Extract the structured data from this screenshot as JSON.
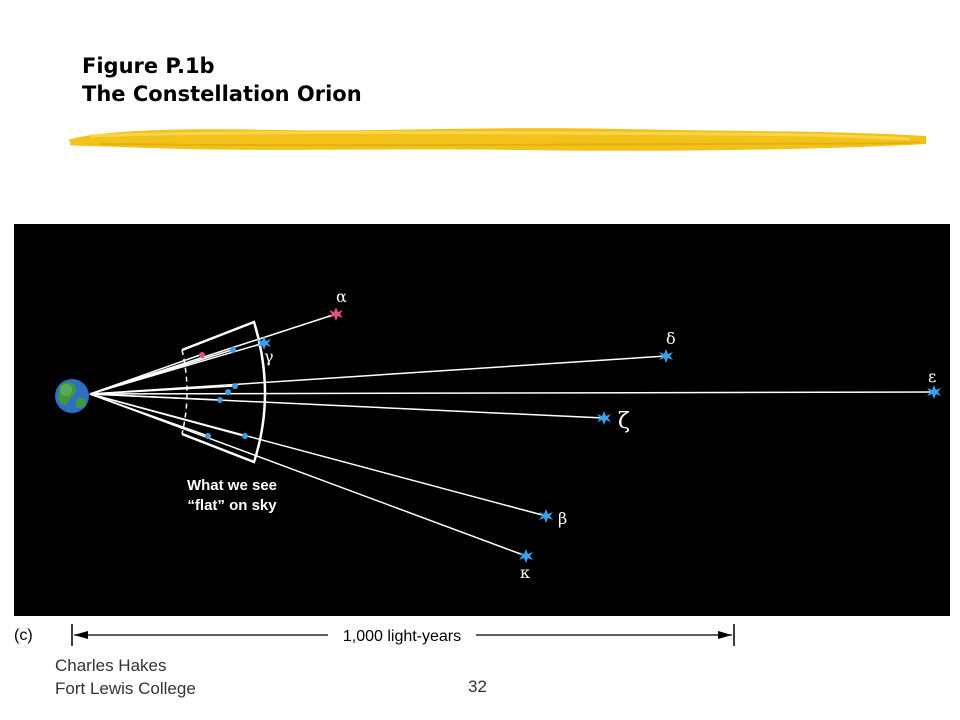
{
  "slide": {
    "title_line1": "Figure P.1b",
    "title_line2": "The Constellation Orion",
    "author": "Charles Hakes",
    "institution": "Fort Lewis College",
    "page_number": "32"
  },
  "diagram": {
    "panel_label": "(c)",
    "caption_line1": "What we see",
    "caption_line2": "“flat” on sky",
    "scale_label": "1,000 light-years",
    "observer_icon": "earth-globe-icon",
    "stars": [
      {
        "id": "alpha",
        "label": "α",
        "color": "#e0508a"
      },
      {
        "id": "gamma",
        "label": "γ",
        "color": "#3aa0e8"
      },
      {
        "id": "delta",
        "label": "δ",
        "color": "#3aa0e8"
      },
      {
        "id": "epsilon",
        "label": "ε",
        "color": "#3aa0e8"
      },
      {
        "id": "zeta",
        "label": "ζ",
        "color": "#3aa0e8"
      },
      {
        "id": "beta",
        "label": "β",
        "color": "#3aa0e8"
      },
      {
        "id": "kappa",
        "label": "κ",
        "color": "#3aa0e8"
      }
    ],
    "colors": {
      "background": "#000000",
      "lines": "#ffffff",
      "highlight_stroke": "#f2c21b"
    }
  }
}
